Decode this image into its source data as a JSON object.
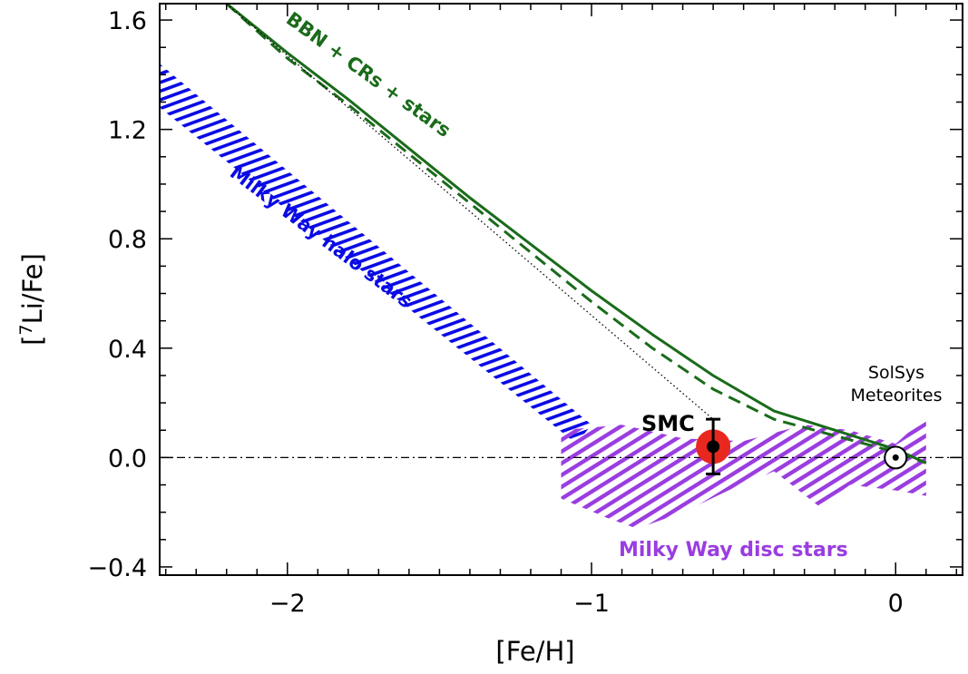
{
  "chart_data": {
    "type": "line",
    "xlabel": "[Fe/H]",
    "ylabel_prefix": "[",
    "ylabel_sup": "7",
    "ylabel_rest": "Li/Fe]",
    "xlim": [
      -2.42,
      0.22
    ],
    "ylim": [
      -0.43,
      1.66
    ],
    "x_ticks": [
      -2,
      -1,
      0
    ],
    "x_tick_labels": [
      "−2",
      "−1",
      "0"
    ],
    "y_ticks": [
      -0.4,
      0.0,
      0.4,
      0.8,
      1.2,
      1.6
    ],
    "y_tick_labels": [
      "−0.4",
      "0.0",
      "0.4",
      "0.8",
      "1.2",
      "1.6"
    ],
    "grid": false,
    "series": [
      {
        "name": "BBN + CRs + stars",
        "style": "solid",
        "color": "#1a6b1a",
        "x": [
          -2.2,
          -2.0,
          -1.8,
          -1.6,
          -1.4,
          -1.2,
          -1.0,
          -0.8,
          -0.6,
          -0.4,
          -0.2,
          0.0,
          0.1
        ],
        "y": [
          1.66,
          1.48,
          1.31,
          1.13,
          0.95,
          0.78,
          0.61,
          0.45,
          0.3,
          0.17,
          0.1,
          0.03,
          -0.02
        ]
      },
      {
        "style": "dashed",
        "color": "#1a6b1a",
        "x": [
          -2.2,
          -2.0,
          -1.8,
          -1.6,
          -1.4,
          -1.2,
          -1.0,
          -0.8,
          -0.6,
          -0.4,
          -0.2,
          0.0,
          0.1
        ],
        "y": [
          1.66,
          1.46,
          1.29,
          1.11,
          0.93,
          0.75,
          0.57,
          0.4,
          0.25,
          0.14,
          0.08,
          0.02,
          -0.02
        ]
      },
      {
        "style": "dotted",
        "color": "#000000",
        "x": [
          -2.2,
          -0.6
        ],
        "y": [
          1.66,
          0.14
        ]
      }
    ],
    "reference_line": {
      "y": 0.0,
      "style": "dash-dot",
      "color": "#000000"
    },
    "regions": [
      {
        "name": "Milky Way halo stars",
        "color": "#0a0ae6",
        "polygon": [
          [
            -2.42,
            1.44
          ],
          [
            -2.42,
            1.28
          ],
          [
            -1.05,
            0.05
          ],
          [
            -1.0,
            0.12
          ]
        ]
      },
      {
        "name": "Milky Way disc stars",
        "color": "#9a3de0",
        "polygon": [
          [
            -1.1,
            0.1
          ],
          [
            -0.9,
            0.12
          ],
          [
            -0.7,
            0.07
          ],
          [
            -0.5,
            0.06
          ],
          [
            -0.3,
            0.12
          ],
          [
            -0.15,
            0.1
          ],
          [
            0.0,
            0.05
          ],
          [
            0.1,
            0.15
          ],
          [
            0.1,
            -0.14
          ],
          [
            0.0,
            -0.12
          ],
          [
            -0.15,
            -0.1
          ],
          [
            -0.25,
            -0.18
          ],
          [
            -0.4,
            -0.05
          ],
          [
            -0.55,
            -0.12
          ],
          [
            -0.7,
            -0.2
          ],
          [
            -0.85,
            -0.26
          ],
          [
            -0.95,
            -0.22
          ],
          [
            -1.1,
            -0.15
          ]
        ]
      }
    ],
    "points": [
      {
        "name": "SMC",
        "x": -0.6,
        "y": 0.04,
        "yerr_low": 0.1,
        "yerr_high": 0.1,
        "halo_color": "#e8281e",
        "color": "#000000"
      },
      {
        "name": "SolSys Meteorites",
        "x": 0.0,
        "y": 0.0,
        "symbol": "sun"
      }
    ],
    "annotations": {
      "bbn": "BBN + CRs + stars",
      "halo": "Milky Way halo stars",
      "disc": "Milky Way disc stars",
      "smc": "SMC",
      "solsys_line1": "SolSys",
      "solsys_line2": "Meteorites"
    }
  }
}
